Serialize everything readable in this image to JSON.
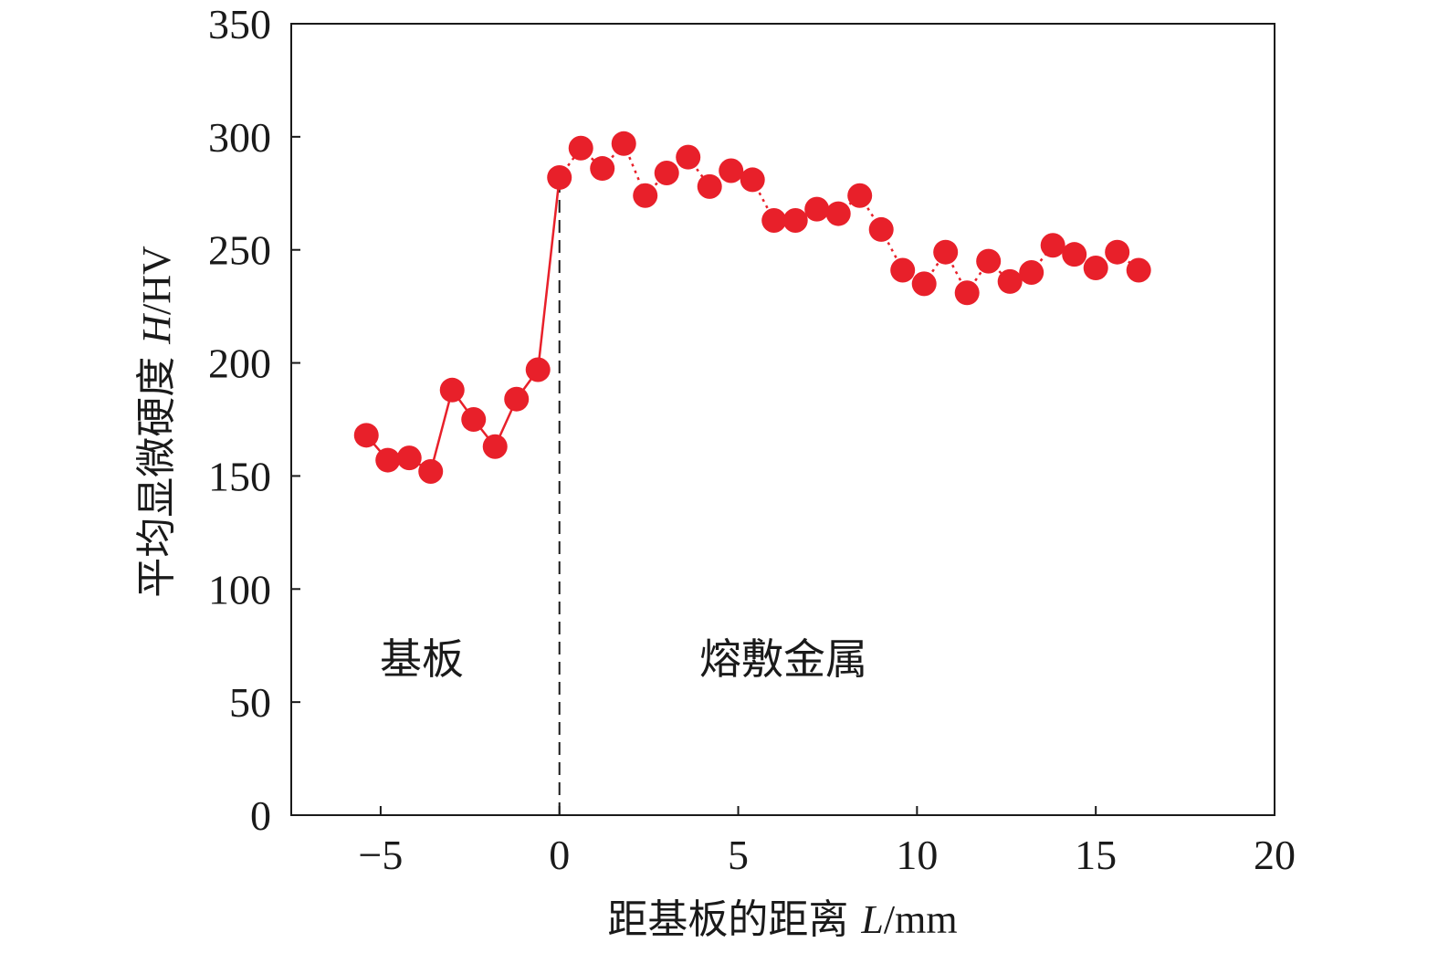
{
  "chart_data": {
    "type": "scatter",
    "title": "",
    "xlabel": {
      "prefix": "距基板的距离 ",
      "var": "L",
      "unit": "/mm"
    },
    "ylabel": {
      "prefix": "平均显微硬度 ",
      "var": "H",
      "unit": "/HV"
    },
    "xlim": [
      -7.5,
      20
    ],
    "ylim": [
      0,
      350
    ],
    "xticks": [
      -5,
      0,
      5,
      10,
      15,
      20
    ],
    "xtick_labels": [
      "−5",
      "0",
      "5",
      "10",
      "15",
      "20"
    ],
    "yticks": [
      0,
      50,
      100,
      150,
      200,
      250,
      300,
      350
    ],
    "ytick_labels": [
      "0",
      "50",
      "100",
      "150",
      "200",
      "250",
      "300",
      "350"
    ],
    "grid": false,
    "divider_x": 0,
    "annotations": [
      "基板",
      "熔敷金属"
    ],
    "marker_color": "#e8202a",
    "line_color": "#e8202a",
    "series": [
      {
        "x": [
          -5.4,
          -4.8,
          -4.2,
          -3.6,
          -3.0,
          -2.4,
          -1.8,
          -1.2,
          -0.6,
          0.0,
          0.6,
          1.2,
          1.8,
          2.4,
          3.0,
          3.6,
          4.2,
          4.8,
          5.4,
          6.0,
          6.6,
          7.2,
          7.8,
          8.4,
          9.0,
          9.6,
          10.2,
          10.8,
          11.4,
          12.0,
          12.6,
          13.2,
          13.8,
          14.4,
          15.0,
          15.6,
          16.2
        ],
        "values": [
          168,
          157,
          158,
          152,
          188,
          175,
          163,
          184,
          197,
          282,
          295,
          286,
          297,
          274,
          284,
          291,
          278,
          285,
          281,
          263,
          263,
          268,
          266,
          274,
          259,
          241,
          235,
          249,
          231,
          245,
          236,
          240,
          252,
          248,
          242,
          249,
          241
        ]
      }
    ]
  }
}
